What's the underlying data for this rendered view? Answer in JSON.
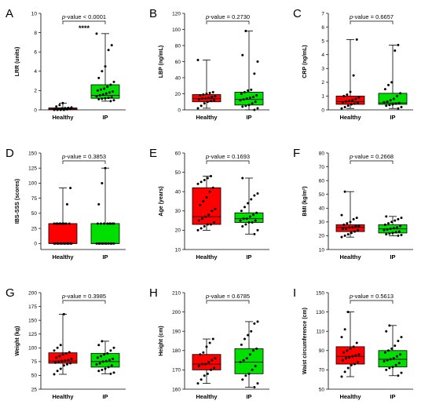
{
  "colors": {
    "healthy": "#ff0000",
    "ip": "#00e000",
    "point": "#000000"
  },
  "chart_data": [
    {
      "panel": "A",
      "type": "box",
      "ylabel": "LRR (units)",
      "ylim": [
        0,
        10
      ],
      "yticks": [
        0,
        2,
        4,
        6,
        8,
        10
      ],
      "categories": [
        "Healthy",
        "IP"
      ],
      "p_prefix": "p",
      "p_value": "-value < 0.0001",
      "significance": "****",
      "boxes": [
        {
          "min": 0.0,
          "q1": 0.02,
          "median": 0.1,
          "q3": 0.2,
          "max": 0.7,
          "points": [
            0,
            0,
            0,
            0,
            0.05,
            0.08,
            0.1,
            0.12,
            0.15,
            0.18,
            0.2,
            0.25,
            0.35,
            0.5,
            0.7
          ]
        },
        {
          "min": 0.9,
          "q1": 1.2,
          "median": 1.5,
          "q3": 2.6,
          "max": 7.9,
          "points": [
            0.9,
            1.0,
            1.1,
            1.15,
            1.2,
            1.25,
            1.3,
            1.4,
            1.5,
            1.6,
            1.7,
            1.8,
            1.9,
            2.0,
            2.1,
            2.2,
            2.4,
            2.6,
            2.9,
            3.3,
            4.0,
            4.5,
            6.2,
            6.7,
            7.9
          ]
        }
      ]
    },
    {
      "panel": "B",
      "type": "box",
      "ylabel": "LBP (ng/mL)",
      "ylim": [
        0,
        120
      ],
      "yticks": [
        0,
        20,
        40,
        60,
        80,
        100,
        120
      ],
      "categories": [
        "Healthy",
        "IP"
      ],
      "p_prefix": "p",
      "p_value": "-value = 0.2730",
      "significance": "",
      "boxes": [
        {
          "min": 2,
          "q1": 10,
          "median": 14,
          "q3": 19,
          "max": 62,
          "points": [
            2,
            5,
            8,
            10,
            11,
            12,
            13,
            14,
            14,
            15,
            16,
            17,
            18,
            19,
            20,
            21,
            22,
            62
          ]
        },
        {
          "min": 0,
          "q1": 6,
          "median": 13,
          "q3": 22,
          "max": 98,
          "points": [
            0,
            2,
            4,
            5,
            6,
            8,
            10,
            12,
            13,
            14,
            15,
            16,
            18,
            20,
            22,
            24,
            25,
            45,
            60,
            68,
            98
          ]
        }
      ]
    },
    {
      "panel": "C",
      "type": "box",
      "ylabel": "CRP (ng/mL)",
      "ylim": [
        0,
        7
      ],
      "yticks": [
        0,
        1,
        2,
        3,
        4,
        5,
        6,
        7
      ],
      "categories": [
        "Healthy",
        "IP"
      ],
      "p_prefix": "p",
      "p_value": "-value = 0.6657",
      "significance": "",
      "boxes": [
        {
          "min": 0.1,
          "q1": 0.4,
          "median": 0.6,
          "q3": 1.0,
          "max": 5.1,
          "points": [
            0.1,
            0.2,
            0.3,
            0.4,
            0.45,
            0.5,
            0.55,
            0.6,
            0.65,
            0.7,
            0.8,
            0.9,
            1.0,
            1.1,
            1.3,
            2.5,
            5.1
          ]
        },
        {
          "min": 0.1,
          "q1": 0.4,
          "median": 0.5,
          "q3": 1.2,
          "max": 4.7,
          "points": [
            0.1,
            0.2,
            0.3,
            0.35,
            0.4,
            0.45,
            0.5,
            0.55,
            0.6,
            0.7,
            0.8,
            1.0,
            1.2,
            1.5,
            1.8,
            2.0,
            4.3,
            4.7
          ]
        }
      ]
    },
    {
      "panel": "D",
      "type": "box",
      "ylabel": "IBS-SSS (scores)",
      "ylim": [
        -10,
        150
      ],
      "yticks": [
        0,
        25,
        50,
        75,
        100,
        125,
        150
      ],
      "categories": [
        "Healthy",
        "IP"
      ],
      "p_prefix": "p",
      "p_value": "-value = 0.3853",
      "significance": "",
      "boxes": [
        {
          "min": 0,
          "q1": 0,
          "median": 0,
          "q3": 33,
          "max": 92,
          "points": [
            0,
            0,
            0,
            0,
            0,
            0,
            0,
            0,
            0,
            0,
            0,
            0,
            33,
            33,
            33,
            33,
            33,
            33,
            33,
            33,
            33,
            65,
            92
          ]
        },
        {
          "min": 0,
          "q1": 0,
          "median": 0,
          "q3": 33,
          "max": 125,
          "points": [
            0,
            0,
            0,
            0,
            0,
            0,
            0,
            0,
            0,
            0,
            0,
            33,
            33,
            33,
            33,
            33,
            33,
            33,
            33,
            65,
            100,
            125
          ]
        }
      ]
    },
    {
      "panel": "E",
      "type": "box",
      "ylabel": "Age (years)",
      "ylim": [
        10,
        60
      ],
      "yticks": [
        10,
        20,
        30,
        40,
        50,
        60
      ],
      "categories": [
        "Healthy",
        "IP"
      ],
      "p_prefix": "p",
      "p_value": "-value = 0.1693",
      "significance": "",
      "boxes": [
        {
          "min": 20,
          "q1": 23,
          "median": 27,
          "q3": 42,
          "max": 48,
          "points": [
            20,
            21,
            22,
            23,
            23,
            24,
            25,
            26,
            27,
            28,
            30,
            31,
            33,
            35,
            37,
            40,
            42,
            44,
            45,
            46,
            47,
            48
          ]
        },
        {
          "min": 18,
          "q1": 24,
          "median": 26,
          "q3": 29,
          "max": 47,
          "points": [
            18,
            20,
            22,
            23,
            24,
            24,
            25,
            25,
            26,
            26,
            27,
            28,
            29,
            30,
            32,
            34,
            36,
            38,
            39,
            47
          ]
        }
      ]
    },
    {
      "panel": "F",
      "type": "box",
      "ylabel": "BMI (kg/m²)",
      "ylim": [
        10,
        80
      ],
      "yticks": [
        10,
        20,
        30,
        40,
        50,
        60,
        70,
        80
      ],
      "categories": [
        "Healthy",
        "IP"
      ],
      "p_prefix": "p",
      "p_value": "-value = 0.2668",
      "significance": "",
      "boxes": [
        {
          "min": 19,
          "q1": 23,
          "median": 26,
          "q3": 28,
          "max": 52,
          "points": [
            19,
            20,
            21,
            22,
            23,
            24,
            25,
            25,
            26,
            26,
            27,
            27,
            28,
            29,
            30,
            32,
            33,
            35,
            52
          ]
        },
        {
          "min": 20,
          "q1": 22,
          "median": 25,
          "q3": 28,
          "max": 34,
          "points": [
            20,
            20.5,
            21,
            21.5,
            22,
            22.5,
            23,
            24,
            24.5,
            25,
            25.5,
            26,
            27,
            28,
            29,
            30,
            31,
            32,
            33,
            34
          ]
        }
      ]
    },
    {
      "panel": "G",
      "type": "box",
      "ylabel": "Weight (kg)",
      "ylim": [
        25,
        200
      ],
      "yticks": [
        25,
        50,
        75,
        100,
        125,
        150,
        175,
        200
      ],
      "categories": [
        "Healthy",
        "IP"
      ],
      "p_prefix": "p",
      "p_value": "-value = 0.3985",
      "significance": "",
      "boxes": [
        {
          "min": 52,
          "q1": 72,
          "median": 76,
          "q3": 91,
          "max": 161,
          "points": [
            52,
            58,
            62,
            68,
            70,
            72,
            73,
            75,
            76,
            77,
            78,
            80,
            82,
            85,
            88,
            90,
            92,
            95,
            100,
            105,
            161
          ]
        },
        {
          "min": 53,
          "q1": 65,
          "median": 75,
          "q3": 90,
          "max": 112,
          "points": [
            53,
            55,
            58,
            60,
            62,
            65,
            68,
            70,
            72,
            75,
            76,
            78,
            80,
            82,
            85,
            88,
            90,
            95,
            100,
            105,
            112
          ]
        }
      ]
    },
    {
      "panel": "H",
      "type": "box",
      "ylabel": "Height (cm)",
      "ylim": [
        160,
        210
      ],
      "yticks": [
        160,
        170,
        180,
        190,
        200,
        210
      ],
      "categories": [
        "Healthy",
        "IP"
      ],
      "p_prefix": "p",
      "p_value": "-value = 0.6785",
      "significance": "",
      "boxes": [
        {
          "min": 163,
          "q1": 170,
          "median": 173,
          "q3": 178,
          "max": 186,
          "points": [
            163,
            165,
            167,
            168,
            170,
            171,
            172,
            173,
            173,
            174,
            175,
            176,
            178,
            179,
            182,
            184,
            186
          ]
        },
        {
          "min": 161,
          "q1": 168,
          "median": 174,
          "q3": 181,
          "max": 195,
          "points": [
            161,
            163,
            165,
            167,
            168,
            170,
            172,
            174,
            175,
            176,
            178,
            180,
            181,
            183,
            186,
            188,
            190,
            194,
            195
          ]
        }
      ]
    },
    {
      "panel": "I",
      "type": "box",
      "ylabel": "Waist circumference (cm)",
      "ylim": [
        50,
        150
      ],
      "yticks": [
        50,
        70,
        90,
        110,
        130,
        150
      ],
      "categories": [
        "Healthy",
        "IP"
      ],
      "p_prefix": "p",
      "p_value": "-value = 0.5613",
      "significance": "",
      "boxes": [
        {
          "min": 63,
          "q1": 76,
          "median": 84,
          "q3": 94,
          "max": 130,
          "points": [
            63,
            68,
            72,
            75,
            76,
            78,
            80,
            82,
            83,
            84,
            85,
            86,
            88,
            90,
            92,
            94,
            98,
            104,
            112,
            130
          ]
        },
        {
          "min": 64,
          "q1": 73,
          "median": 81,
          "q3": 90,
          "max": 116,
          "points": [
            64,
            67,
            70,
            72,
            73,
            75,
            77,
            79,
            80,
            81,
            82,
            84,
            86,
            88,
            90,
            92,
            95,
            100,
            104,
            110,
            116
          ]
        }
      ]
    }
  ]
}
